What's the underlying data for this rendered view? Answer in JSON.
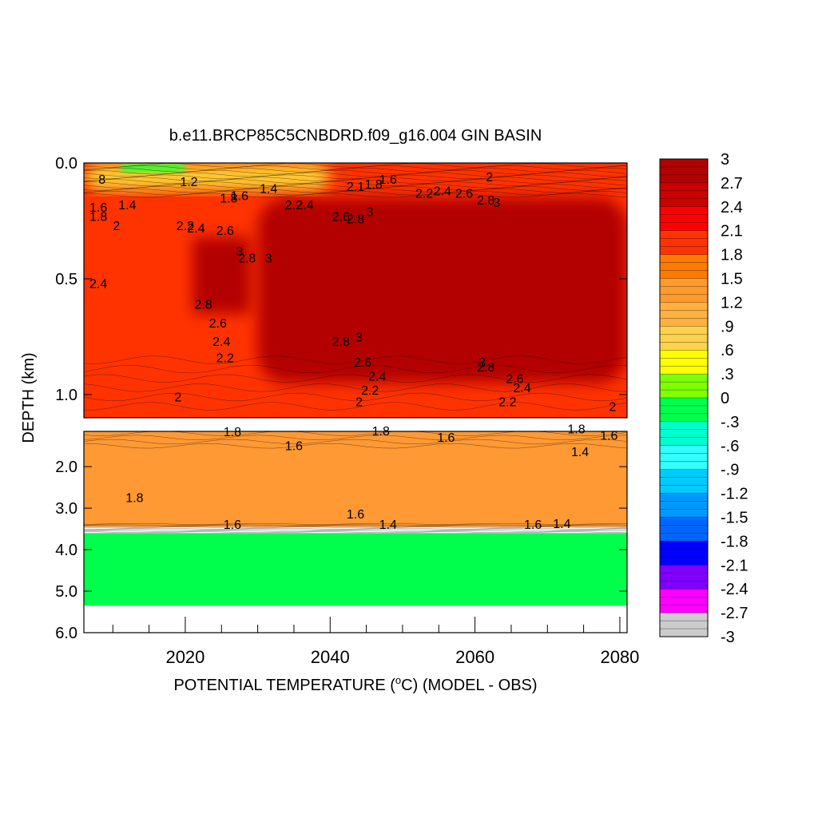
{
  "title": "b.e11.BRCP85C5CNBDRD.f09_g16.004 GIN BASIN",
  "xlabel_parts": {
    "prefix": "POTENTIAL TEMPERATURE (",
    "degree": "o",
    "suffix": "C) (MODEL - OBS)"
  },
  "ylabel": "DEPTH (km)",
  "chart_data": {
    "type": "heatmap",
    "title": "b.e11.BRCP85C5CNBDRD.f09_g16.004 GIN BASIN",
    "xlabel": "POTENTIAL TEMPERATURE (oC) (MODEL - OBS)",
    "ylabel": "DEPTH (km)",
    "x_axis": {
      "range": [
        2006,
        2081
      ],
      "ticks": [
        2020,
        2040,
        2060,
        2080
      ],
      "tick_labels": [
        "2020",
        "2040",
        "2060",
        "2080"
      ]
    },
    "upper_panel": {
      "y_range": [
        0.0,
        1.1
      ],
      "y_ticks": [
        0.0,
        0.5,
        1.0
      ],
      "y_tick_labels": [
        "0.0",
        "0.5",
        "1.0"
      ],
      "regions": [
        {
          "name": "surface-warm",
          "x": [
            2006,
            2081
          ],
          "y": [
            0.0,
            1.1
          ],
          "value": 2.0,
          "color": "#ff3300"
        },
        {
          "name": "core-maximum",
          "x": [
            2030,
            2081
          ],
          "y": [
            0.15,
            0.95
          ],
          "value": 3.0,
          "color": "#b30000"
        },
        {
          "name": "early-core",
          "x": [
            2021,
            2029
          ],
          "y": [
            0.32,
            0.65
          ],
          "value": 3.0,
          "color": "#b30000"
        },
        {
          "name": "near-surface-cool",
          "x": [
            2006,
            2040
          ],
          "y": [
            0.0,
            0.12
          ],
          "value": 1.0,
          "color": "#ffcc33"
        },
        {
          "name": "surface-green-patch",
          "x": [
            2011,
            2020
          ],
          "y": [
            0.0,
            0.04
          ],
          "value": 0.4,
          "color": "#33ff33"
        }
      ],
      "contour_labels": [
        {
          "x": 2008.5,
          "y": 0.09,
          "text": "8"
        },
        {
          "x": 2020.5,
          "y": 0.1,
          "text": "1.2"
        },
        {
          "x": 2008,
          "y": 0.21,
          "text": "1.6"
        },
        {
          "x": 2012,
          "y": 0.2,
          "text": "1.4"
        },
        {
          "x": 2008,
          "y": 0.25,
          "text": "1.8"
        },
        {
          "x": 2010.5,
          "y": 0.29,
          "text": "2"
        },
        {
          "x": 2026,
          "y": 0.17,
          "text": "1.8"
        },
        {
          "x": 2027.5,
          "y": 0.16,
          "text": "1.6"
        },
        {
          "x": 2031.5,
          "y": 0.13,
          "text": "1.4"
        },
        {
          "x": 2020,
          "y": 0.29,
          "text": "2.2"
        },
        {
          "x": 2021.5,
          "y": 0.3,
          "text": "2.4"
        },
        {
          "x": 2025.5,
          "y": 0.31,
          "text": "2.6"
        },
        {
          "x": 2027.5,
          "y": 0.4,
          "text": "3"
        },
        {
          "x": 2028.5,
          "y": 0.43,
          "text": "2.8"
        },
        {
          "x": 2031.5,
          "y": 0.43,
          "text": "3"
        },
        {
          "x": 2035,
          "y": 0.2,
          "text": "2.2"
        },
        {
          "x": 2036.5,
          "y": 0.2,
          "text": "2.4"
        },
        {
          "x": 2041.5,
          "y": 0.25,
          "text": "2.6"
        },
        {
          "x": 2043.5,
          "y": 0.26,
          "text": "2.8"
        },
        {
          "x": 2045.5,
          "y": 0.23,
          "text": "3"
        },
        {
          "x": 2043.5,
          "y": 0.12,
          "text": "2.1"
        },
        {
          "x": 2046,
          "y": 0.11,
          "text": "1.8"
        },
        {
          "x": 2048,
          "y": 0.09,
          "text": "1.6"
        },
        {
          "x": 2053,
          "y": 0.15,
          "text": "2.2"
        },
        {
          "x": 2055.5,
          "y": 0.14,
          "text": "2.4"
        },
        {
          "x": 2058.5,
          "y": 0.15,
          "text": "2.6"
        },
        {
          "x": 2061.5,
          "y": 0.18,
          "text": "2.8"
        },
        {
          "x": 2063,
          "y": 0.19,
          "text": "3"
        },
        {
          "x": 2062,
          "y": 0.08,
          "text": "2"
        },
        {
          "x": 2022.5,
          "y": 0.63,
          "text": "2.8"
        },
        {
          "x": 2024.5,
          "y": 0.71,
          "text": "2.6"
        },
        {
          "x": 2025,
          "y": 0.79,
          "text": "2.4"
        },
        {
          "x": 2025.5,
          "y": 0.86,
          "text": "2.2"
        },
        {
          "x": 2008,
          "y": 0.54,
          "text": "2.4"
        },
        {
          "x": 2019,
          "y": 1.03,
          "text": "2"
        },
        {
          "x": 2041.5,
          "y": 0.79,
          "text": "2.8"
        },
        {
          "x": 2044,
          "y": 0.77,
          "text": "3"
        },
        {
          "x": 2044.5,
          "y": 0.88,
          "text": "2.6"
        },
        {
          "x": 2046.5,
          "y": 0.94,
          "text": "2.4"
        },
        {
          "x": 2045.5,
          "y": 1.0,
          "text": "2.2"
        },
        {
          "x": 2044,
          "y": 1.05,
          "text": "2"
        },
        {
          "x": 2061,
          "y": 0.88,
          "text": "3"
        },
        {
          "x": 2061.5,
          "y": 0.9,
          "text": "2.8"
        },
        {
          "x": 2065.5,
          "y": 0.95,
          "text": "2.6"
        },
        {
          "x": 2066.5,
          "y": 0.99,
          "text": "2.4"
        },
        {
          "x": 2064.5,
          "y": 1.05,
          "text": "2.2"
        },
        {
          "x": 2079,
          "y": 1.07,
          "text": "2"
        }
      ]
    },
    "lower_panel": {
      "y_range": [
        1.15,
        6.0
      ],
      "y_ticks": [
        2.0,
        3.0,
        4.0,
        5.0,
        6.0
      ],
      "y_tick_labels": [
        "2.0",
        "3.0",
        "4.0",
        "5.0",
        "6.0"
      ],
      "regions": [
        {
          "name": "deep-warm",
          "x": [
            2006,
            2081
          ],
          "y": [
            1.15,
            3.45
          ],
          "value": 1.6,
          "color": "#ff9933"
        },
        {
          "name": "seafloor-zero",
          "x": [
            2006,
            2081
          ],
          "y": [
            3.6,
            5.35
          ],
          "value": 0.0,
          "color": "#00ff4d"
        },
        {
          "name": "no-data",
          "x": [
            2006,
            2081
          ],
          "y": [
            5.35,
            6.0
          ],
          "value": null,
          "color": "#ffffff"
        }
      ],
      "contour_labels": [
        {
          "x": 2026.5,
          "y": 1.27,
          "text": "1.8"
        },
        {
          "x": 2035,
          "y": 1.6,
          "text": "1.6"
        },
        {
          "x": 2013,
          "y": 2.85,
          "text": "1.8"
        },
        {
          "x": 2047,
          "y": 1.25,
          "text": "1.8"
        },
        {
          "x": 2056,
          "y": 1.4,
          "text": "1.6"
        },
        {
          "x": 2043.5,
          "y": 3.25,
          "text": "1.6"
        },
        {
          "x": 2074,
          "y": 1.2,
          "text": "1.8"
        },
        {
          "x": 2078.5,
          "y": 1.35,
          "text": "1.6"
        },
        {
          "x": 2074.5,
          "y": 1.75,
          "text": "1.4"
        },
        {
          "x": 2026.5,
          "y": 3.5,
          "text": "1.6"
        },
        {
          "x": 2048,
          "y": 3.5,
          "text": "1.4"
        },
        {
          "x": 2068,
          "y": 3.5,
          "text": "1.6"
        },
        {
          "x": 2072,
          "y": 3.48,
          "text": "1.4"
        }
      ]
    },
    "colorbar": {
      "min": -3,
      "max": 3,
      "step": 0.1,
      "tick_labels": [
        "3",
        "2.7",
        "2.4",
        "2.1",
        "1.8",
        "1.5",
        "1.2",
        ".9",
        ".6",
        ".3",
        "0",
        "-.3",
        "-.6",
        "-.9",
        "-1.2",
        "-1.5",
        "-1.8",
        "-2.1",
        "-2.4",
        "-2.7",
        "-3"
      ],
      "stops": [
        {
          "v": 3.0,
          "color": "#b30000"
        },
        {
          "v": 2.7,
          "color": "#cc0000"
        },
        {
          "v": 2.4,
          "color": "#ff0000"
        },
        {
          "v": 2.1,
          "color": "#ff3300"
        },
        {
          "v": 1.8,
          "color": "#ff7a00"
        },
        {
          "v": 1.5,
          "color": "#ff9a2e"
        },
        {
          "v": 1.2,
          "color": "#ffb040"
        },
        {
          "v": 0.9,
          "color": "#ffd24d"
        },
        {
          "v": 0.6,
          "color": "#ffff00"
        },
        {
          "v": 0.3,
          "color": "#80ff00"
        },
        {
          "v": 0.0,
          "color": "#00ff4d"
        },
        {
          "v": -0.3,
          "color": "#00ffcc"
        },
        {
          "v": -0.6,
          "color": "#33ffff"
        },
        {
          "v": -0.9,
          "color": "#00ccff"
        },
        {
          "v": -1.2,
          "color": "#0099ff"
        },
        {
          "v": -1.5,
          "color": "#0066ff"
        },
        {
          "v": -1.8,
          "color": "#0000ff"
        },
        {
          "v": -2.1,
          "color": "#8000ff"
        },
        {
          "v": -2.4,
          "color": "#ff00ff"
        },
        {
          "v": -2.7,
          "color": "#cccccc"
        },
        {
          "v": -3.0,
          "color": "#666666"
        }
      ]
    }
  }
}
